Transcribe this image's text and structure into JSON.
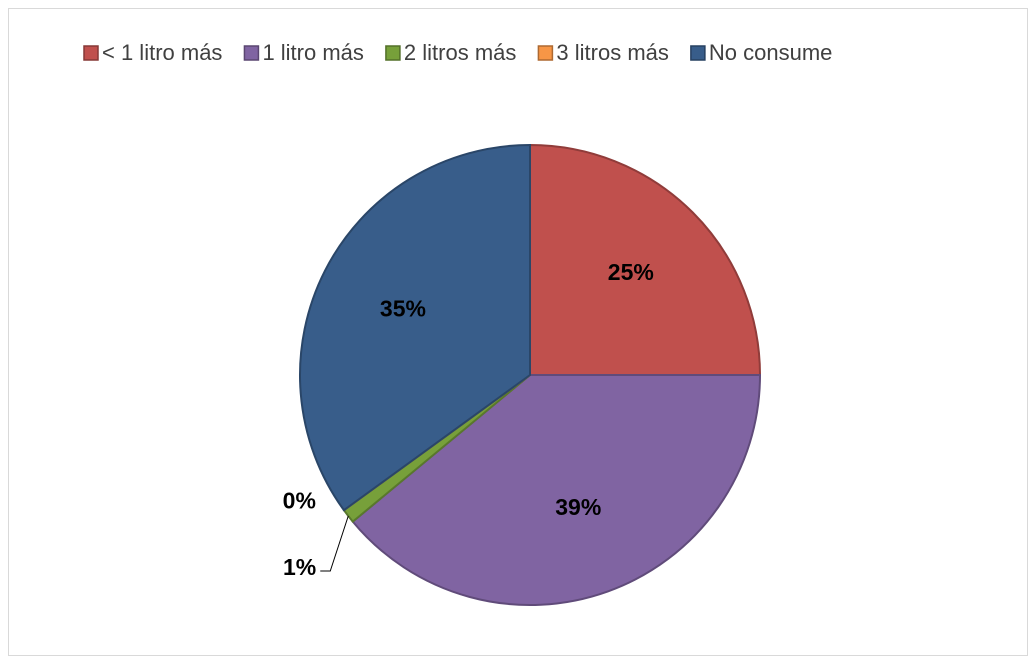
{
  "chart_data": {
    "type": "pie",
    "categories": [
      "< 1 litro más",
      "1 litro más",
      "2 litros más",
      "3 litros más",
      "No consume"
    ],
    "values": [
      25,
      39,
      1,
      0,
      35
    ],
    "value_labels": [
      "25%",
      "39%",
      "1%",
      "0%",
      "35%"
    ],
    "colors": [
      "#c0504d",
      "#8064a2",
      "#77a03a",
      "#f79646",
      "#385d8a"
    ],
    "legend": "top"
  }
}
